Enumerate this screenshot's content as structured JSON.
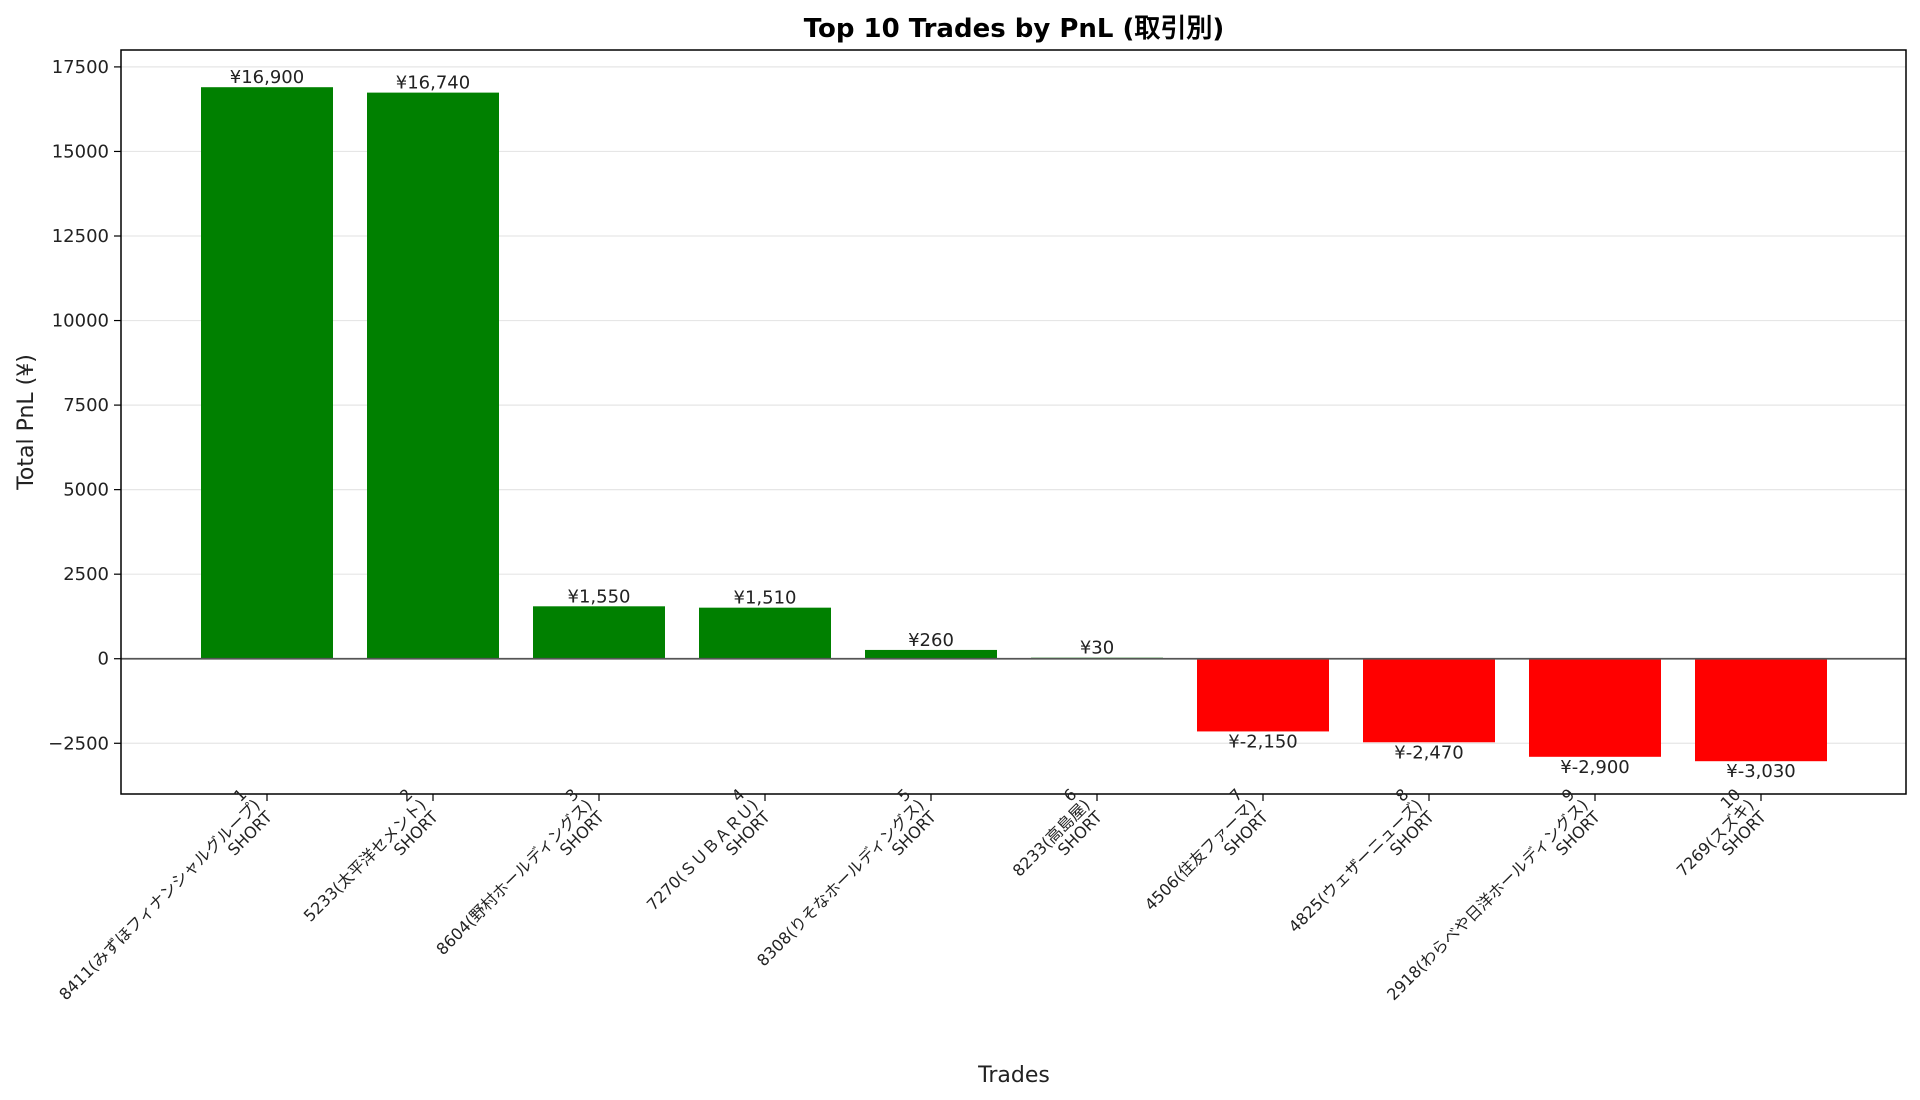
{
  "chart_data": {
    "type": "bar",
    "title": "Top 10 Trades by PnL (取引別)",
    "xlabel": "Trades",
    "ylabel": "Total PnL (¥)",
    "ylim": [
      -4000,
      18000
    ],
    "yticks": [
      -2500,
      0,
      2500,
      5000,
      7500,
      10000,
      12500,
      15000,
      17500
    ],
    "ytick_labels": [
      "−2500",
      "0",
      "2500",
      "5000",
      "7500",
      "10000",
      "12500",
      "15000",
      "17500"
    ],
    "grid": "horizontal",
    "colors": {
      "positive": "#008000",
      "negative": "#ff0000",
      "zero_line": "#555555",
      "grid": "#e6e6e6"
    },
    "bars": [
      {
        "rank": "1",
        "ticker": "8411(みずほフィナンシャルグループ)",
        "side": "SHORT",
        "value": 16900,
        "label": "¥16,900"
      },
      {
        "rank": "2",
        "ticker": "5233(太平洋セメント)",
        "side": "SHORT",
        "value": 16740,
        "label": "¥16,740"
      },
      {
        "rank": "3",
        "ticker": "8604(野村ホールディングス)",
        "side": "SHORT",
        "value": 1550,
        "label": "¥1,550"
      },
      {
        "rank": "4",
        "ticker": "7270(ＳＵＢＡＲＵ)",
        "side": "SHORT",
        "value": 1510,
        "label": "¥1,510"
      },
      {
        "rank": "5",
        "ticker": "8308(りそなホールディングス)",
        "side": "SHORT",
        "value": 260,
        "label": "¥260"
      },
      {
        "rank": "6",
        "ticker": "8233(高島屋)",
        "side": "SHORT",
        "value": 30,
        "label": "¥30"
      },
      {
        "rank": "7",
        "ticker": "4506(住友ファーマ)",
        "side": "SHORT",
        "value": -2150,
        "label": "¥-2,150"
      },
      {
        "rank": "8",
        "ticker": "4825(ウェザーニューズ)",
        "side": "SHORT",
        "value": -2470,
        "label": "¥-2,470"
      },
      {
        "rank": "9",
        "ticker": "2918(わらべや日洋ホールディングス)",
        "side": "SHORT",
        "value": -2900,
        "label": "¥-2,900"
      },
      {
        "rank": "10",
        "ticker": "7269(スズキ)",
        "side": "SHORT",
        "value": -3030,
        "label": "¥-3,030"
      }
    ]
  }
}
